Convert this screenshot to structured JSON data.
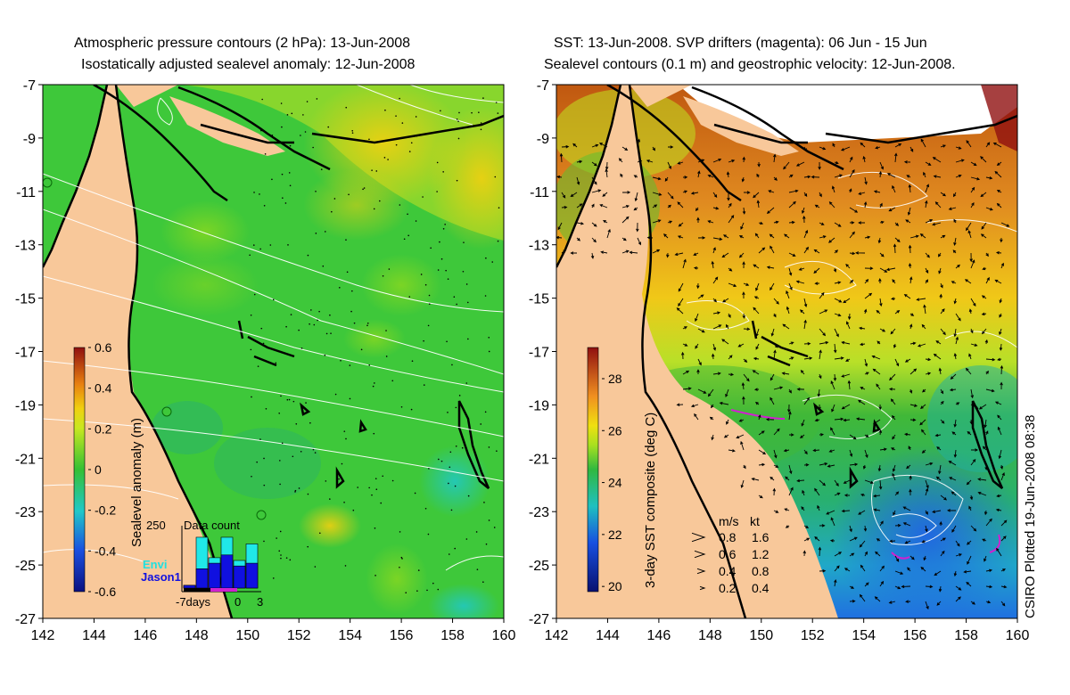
{
  "left_panel": {
    "title_line1": "Atmospheric pressure contours (2 hPa): 13-Jun-2008",
    "title_line2": "Isostatically adjusted sealevel anomaly: 12-Jun-2008",
    "colorbar": {
      "label": "Sealevel anomaly (m)",
      "ticks": [
        "0.6",
        "0.4",
        "0.2",
        "0",
        "-0.2",
        "-0.4",
        "-0.6"
      ],
      "range": [
        -0.6,
        0.6
      ]
    },
    "data_count": {
      "title": "Data count",
      "ymax_label": "250",
      "legend": [
        "Envi",
        "Jason1"
      ],
      "x_ticks": [
        "-7days",
        "0",
        "3"
      ],
      "envi_heights": [
        0.05,
        0.92,
        0.55,
        0.92,
        0.5,
        0.8
      ],
      "jason_heights": [
        0.05,
        0.35,
        0.45,
        0.6,
        0.4,
        0.45
      ]
    }
  },
  "right_panel": {
    "title_line1": "SST: 13-Jun-2008. SVP drifters (magenta): 06 Jun - 15 Jun",
    "title_line2": "Sealevel contours (0.1 m) and geostrophic velocity: 12-Jun-2008.",
    "colorbar": {
      "label": "3-day SST composite (deg C)",
      "ticks": [
        "28",
        "26",
        "24",
        "22",
        "20"
      ],
      "range": [
        19.8,
        29.2
      ]
    },
    "velocity_legend": {
      "header_ms": "m/s",
      "header_kt": "kt",
      "rows": [
        {
          "ms": "0.8",
          "kt": "1.6"
        },
        {
          "ms": "0.6",
          "kt": "1.2"
        },
        {
          "ms": "0.4",
          "kt": "0.8"
        },
        {
          "ms": "0.2",
          "kt": "0.4"
        }
      ]
    }
  },
  "axes": {
    "lon_ticks": [
      "142",
      "144",
      "146",
      "148",
      "150",
      "152",
      "154",
      "156",
      "158",
      "160"
    ],
    "lat_ticks": [
      "-7",
      "-9",
      "-11",
      "-13",
      "-15",
      "-17",
      "-19",
      "-21",
      "-23",
      "-25",
      "-27"
    ],
    "lon_range": [
      142,
      160
    ],
    "lat_range": [
      -27,
      -7
    ]
  },
  "credit": "CSIRO Plotted 19-Jun-2008 08:38",
  "colors": {
    "land": "#f8c89a",
    "ocean_ssh": "#3ec83a",
    "coast": "#000000",
    "contour": "#ffffff",
    "drifter": "#d020d0"
  }
}
